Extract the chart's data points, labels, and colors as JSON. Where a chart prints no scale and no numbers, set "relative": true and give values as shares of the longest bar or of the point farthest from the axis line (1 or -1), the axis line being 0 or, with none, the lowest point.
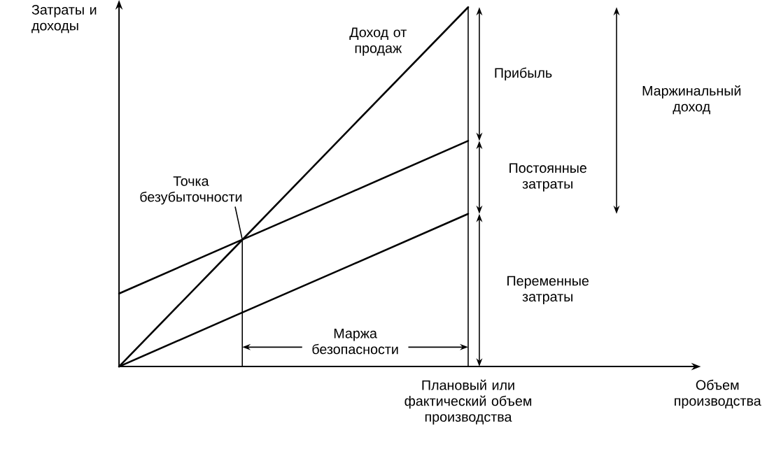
{
  "chart_data": {
    "type": "line",
    "relative": true,
    "xlabel": "Объем производства",
    "ylabel": "Затраты и доходы",
    "categories": [
      null,
      null,
      null,
      null,
      null,
      null
    ],
    "series": [
      {
        "name": "Доход от продаж",
        "color": "#000000",
        "values": [
          0,
          0.333,
          0.667,
          1,
          null,
          null
        ]
      },
      {
        "color": "#000000",
        "values": [
          0.203,
          0.345,
          0.486,
          0.628,
          null,
          null
        ]
      },
      {
        "color": "#000000",
        "values": [
          0,
          0.142,
          0.283,
          0.425,
          null,
          null
        ]
      }
    ],
    "annotations": [
      "Прибыль",
      "Постоянные затраты",
      "Переменные затраты",
      "Маржинальный доход",
      "Точка безубыточности",
      "Маржа безопасности",
      "Плановый или фактический объем производства"
    ]
  }
}
